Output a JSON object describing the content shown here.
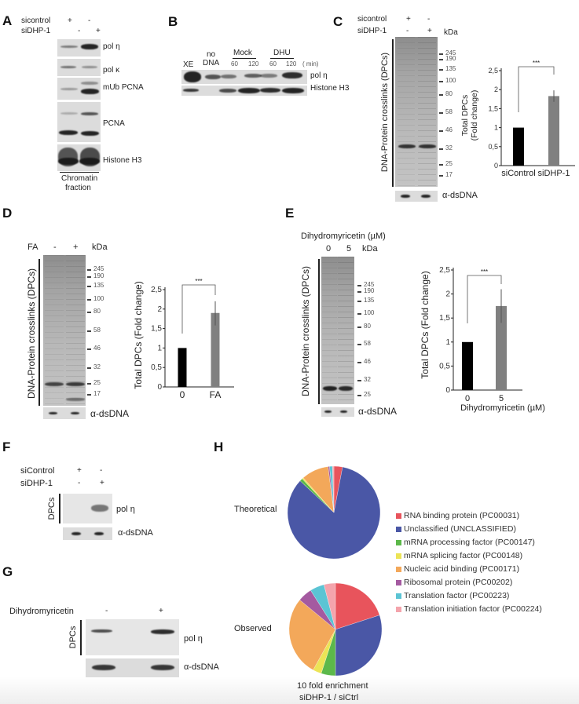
{
  "panels": {
    "a": {
      "label": "A",
      "rows": [
        "sicontrol",
        "siDHP-1"
      ],
      "row1_signs": [
        "+",
        "-"
      ],
      "row2_signs": [
        "-",
        "+"
      ],
      "bands": [
        "pol η",
        "pol κ",
        "mUb PCNA",
        "PCNA",
        "Histone H3"
      ],
      "footer_line1": "Chromatin",
      "footer_line2": "fraction"
    },
    "b": {
      "label": "B",
      "lanes": [
        "XE",
        "no",
        "DNA",
        "Mock",
        "DHU",
        "60",
        "120",
        "60",
        "120"
      ],
      "unit": "( min)",
      "bands": [
        "pol η",
        "Histone H3"
      ]
    },
    "c": {
      "label": "C",
      "rows": [
        "sicontrol",
        "siDHP-1"
      ],
      "row1_signs": [
        "+",
        "-"
      ],
      "row2_signs": [
        "-",
        "+"
      ],
      "kda": "kDa",
      "ladder": [
        "245",
        "190",
        "135",
        "100",
        "80",
        "58",
        "46",
        "32",
        "25",
        "17"
      ],
      "side_label": "DNA-Protein crosslinks (DPCs)",
      "loading": "α-dsDNA"
    },
    "d": {
      "label": "D",
      "treatment": "FA",
      "signs": [
        "-",
        "+"
      ],
      "kda": "kDa",
      "ladder": [
        "245",
        "190",
        "135",
        "100",
        "80",
        "58",
        "46",
        "32",
        "25",
        "17"
      ],
      "side_label": "DNA-Protein crosslinks (DPCs)",
      "loading": "α-dsDNA"
    },
    "e": {
      "label": "E",
      "treatment": "Dihydromyricetin (µM)",
      "doses": [
        "0",
        "5"
      ],
      "kda": "kDa",
      "ladder": [
        "245",
        "190",
        "135",
        "100",
        "80",
        "58",
        "46",
        "32",
        "25"
      ],
      "side_label": "DNA-Protein crosslinks (DPCs)",
      "loading": "α-dsDNA"
    },
    "f": {
      "label": "F",
      "rows": [
        "siControl",
        "siDHP-1"
      ],
      "row1_signs": [
        "+",
        "-"
      ],
      "row2_signs": [
        "-",
        "+"
      ],
      "side_label": "DPCs",
      "band": "pol η",
      "loading": "α-dsDNA"
    },
    "g": {
      "label": "G",
      "treatment": "Dihydromyricetin",
      "signs": [
        "-",
        "+"
      ],
      "side_label": "DPCs",
      "band": "pol η",
      "loading": "α-dsDNA"
    },
    "h": {
      "label": "H",
      "caption_line1": "10 fold enrichment",
      "caption_line2": "siDHP-1 / siCtrl"
    }
  },
  "chart_data": [
    {
      "id": "c",
      "type": "bar",
      "categories": [
        "siControl",
        "siDHP-1"
      ],
      "values": [
        1.0,
        1.83
      ],
      "errors": [
        [
          1.0,
          1.0
        ],
        [
          1.68,
          1.98
        ]
      ],
      "colors": [
        "#000000",
        "#808080"
      ],
      "ylabel_line1": "Total DPCs",
      "ylabel_line2": "(Fold change)",
      "yticks": [
        "0",
        "0,5",
        "1",
        "1,5",
        "2",
        "2,5"
      ],
      "ylim": [
        0,
        2.5
      ],
      "significance": "***"
    },
    {
      "id": "d",
      "type": "bar",
      "categories": [
        "0",
        "FA"
      ],
      "values": [
        1.0,
        1.9
      ],
      "errors": [
        [
          1.0,
          1.0
        ],
        [
          1.58,
          2.2
        ]
      ],
      "colors": [
        "#000000",
        "#808080"
      ],
      "ylabel": "Total DPCs (Fold change)",
      "yticks": [
        "0",
        "0,5",
        "1",
        "1,5",
        "2",
        "2,5"
      ],
      "ylim": [
        0,
        2.5
      ],
      "significance": "***"
    },
    {
      "id": "e",
      "type": "bar",
      "categories": [
        "0",
        "5"
      ],
      "values": [
        1.0,
        1.75
      ],
      "errors": [
        [
          1.0,
          1.0
        ],
        [
          1.4,
          2.1
        ]
      ],
      "colors": [
        "#000000",
        "#808080"
      ],
      "ylabel": "Total DPCs (Fold change)",
      "xlabel": "Dihydromyricetin (µM)",
      "yticks": [
        "0",
        "0,5",
        "1",
        "1,5",
        "2",
        "2,5"
      ],
      "ylim": [
        0,
        2.5
      ],
      "significance": "***"
    },
    {
      "id": "h",
      "type": "pie",
      "legend": [
        {
          "label": "RNA binding protein (PC00031)",
          "color": "#e8545c"
        },
        {
          "label": "Unclassified (UNCLASSIFIED)",
          "color": "#4a57a6"
        },
        {
          "label": "mRNA processing factor (PC00147)",
          "color": "#5cb84a"
        },
        {
          "label": "mRNA splicing factor (PC00148)",
          "color": "#ece456"
        },
        {
          "label": "Nucleic acid binding (PC00171)",
          "color": "#f3a85a"
        },
        {
          "label": "Ribosomal protein (PC00202)",
          "color": "#a45aa0"
        },
        {
          "label": "Translation factor (PC00223)",
          "color": "#5bc4d4"
        },
        {
          "label": "Translation initiation factor (PC00224)",
          "color": "#f4a4ac"
        }
      ],
      "series": [
        {
          "name": "Theoretical",
          "values": [
            3,
            84,
            1,
            0.5,
            9.5,
            0.5,
            1,
            0.5
          ]
        },
        {
          "name": "Observed",
          "values": [
            20,
            30,
            5,
            3,
            28,
            5,
            5,
            4
          ]
        }
      ]
    }
  ]
}
